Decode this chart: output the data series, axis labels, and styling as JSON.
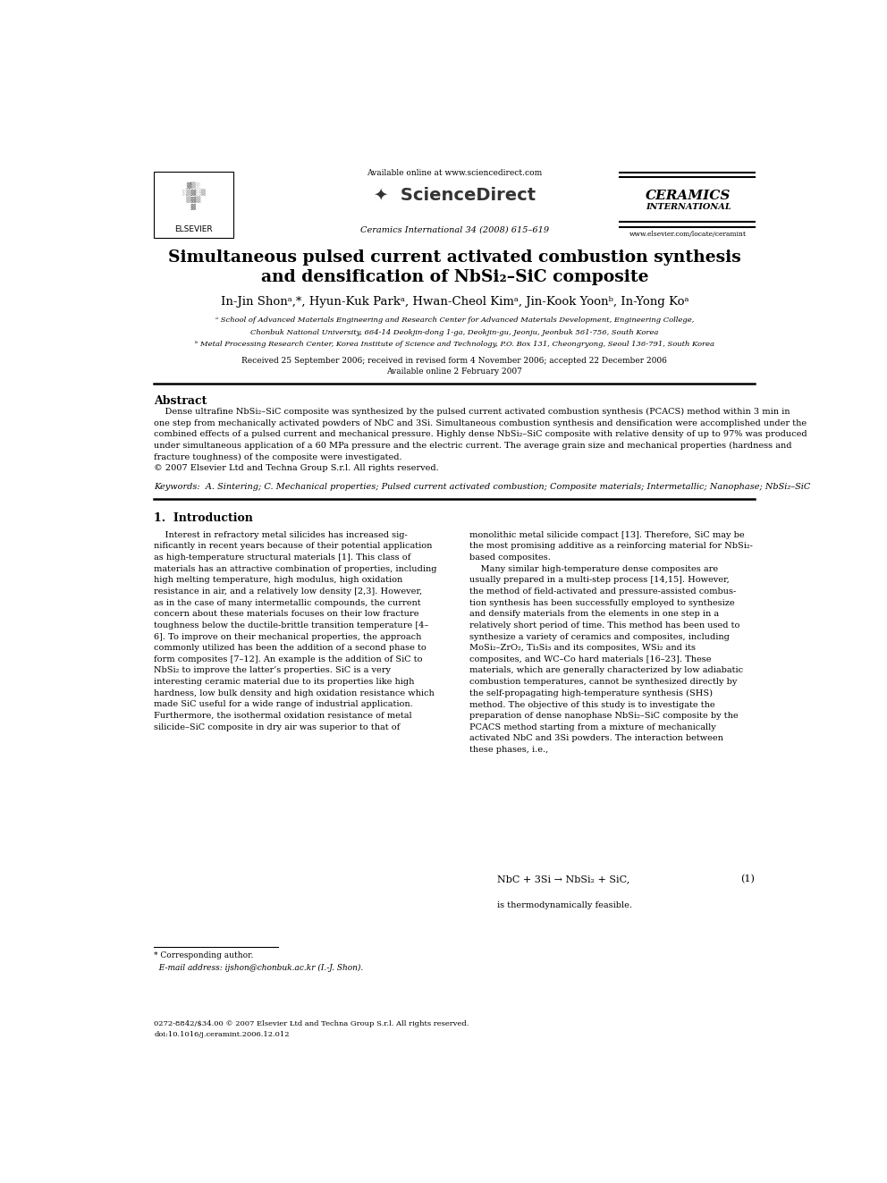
{
  "page_width": 9.92,
  "page_height": 13.23,
  "bg_color": "#ffffff",
  "header_available": "Available online at www.sciencedirect.com",
  "header_journal_info": "Ceramics International 34 (2008) 615–619",
  "header_ceramics1": "CERAMICS",
  "header_ceramics2": "INTERNATIONAL",
  "header_url": "www.elsevier.com/locate/ceramint",
  "elsevier_label": "ELSEVIER",
  "sciencedirect": "✦  ScienceDirect",
  "title_line1": "Simultaneous pulsed current activated combustion synthesis",
  "title_line2": "and densification of NbSi₂–SiC composite",
  "authors_line": "In-Jin Shonᵃ,*, Hyun-Kuk Parkᵃ, Hwan-Cheol Kimᵃ, Jin-Kook Yoonᵇ, In-Yong Koᵃ",
  "affil_a1": "ᵃ School of Advanced Materials Engineering and Research Center for Advanced Materials Development, Engineering College,",
  "affil_a2": "Chonbuk National University, 664-14 Deokjin-dong 1-ga, Deokjin-gu, Jeonju, Jeonbuk 561-756, South Korea",
  "affil_b": "ᵇ Metal Processing Research Center, Korea Institute of Science and Technology, P.O. Box 131, Cheongryong, Seoul 136-791, South Korea",
  "received": "Received 25 September 2006; received in revised form 4 November 2006; accepted 22 December 2006",
  "available_online": "Available online 2 February 2007",
  "abstract_head": "Abstract",
  "abstract_body": "    Dense ultrafine NbSi₂–SiC composite was synthesized by the pulsed current activated combustion synthesis (PCACS) method within 3 min in\none step from mechanically activated powders of NbC and 3Si. Simultaneous combustion synthesis and densification were accomplished under the\ncombined effects of a pulsed current and mechanical pressure. Highly dense NbSi₂–SiC composite with relative density of up to 97% was produced\nunder simultaneous application of a 60 MPa pressure and the electric current. The average grain size and mechanical properties (hardness and\nfracture toughness) of the composite were investigated.\n© 2007 Elsevier Ltd and Techna Group S.r.l. All rights reserved.",
  "keywords": "Keywords:  A. Sintering; C. Mechanical properties; Pulsed current activated combustion; Composite materials; Intermetallic; Nanophase; NbSi₂–SiC",
  "intro_head": "1.  Introduction",
  "col1_para1": "    Interest in refractory metal silicides has increased sig-\nnificantly in recent years because of their potential application\nas high-temperature structural materials [1]. This class of\nmaterials has an attractive combination of properties, including\nhigh melting temperature, high modulus, high oxidation\nresistance in air, and a relatively low density [2,3]. However,\nas in the case of many intermetallic compounds, the current\nconcern about these materials focuses on their low fracture\ntoughness below the ductile-brittle transition temperature [4–\n6]. To improve on their mechanical properties, the approach\ncommonly utilized has been the addition of a second phase to\nform composites [7–12]. An example is the addition of SiC to\nNbSi₂ to improve the latter’s properties. SiC is a very\ninteresting ceramic material due to its properties like high\nhardness, low bulk density and high oxidation resistance which\nmade SiC useful for a wide range of industrial application.\nFurthermore, the isothermal oxidation resistance of metal\nsilicide–SiC composite in dry air was superior to that of",
  "col2_para1": "monolithic metal silicide compact [13]. Therefore, SiC may be\nthe most promising additive as a reinforcing material for NbSi₂-\nbased composites.\n    Many similar high-temperature dense composites are\nusually prepared in a multi-step process [14,15]. However,\nthe method of field-activated and pressure-assisted combus-\ntion synthesis has been successfully employed to synthesize\nand densify materials from the elements in one step in a\nrelatively short period of time. This method has been used to\nsynthesize a variety of ceramics and composites, including\nMoSi₂–ZrO₂, Ti₃Si₃ and its composites, WSi₂ and its\ncomposites, and WC–Co hard materials [16–23]. These\nmaterials, which are generally characterized by low adiabatic\ncombustion temperatures, cannot be synthesized directly by\nthe self-propagating high-temperature synthesis (SHS)\nmethod. The objective of this study is to investigate the\npreparation of dense nanophase NbSi₂–SiC composite by the\nPCACS method starting from a mixture of mechanically\nactivated NbC and 3Si powders. The interaction between\nthese phases, i.e.,",
  "equation": "NbC + 3Si → NbSi₂ + SiC,",
  "eq_number": "(1)",
  "eq_note": "is thermodynamically feasible.",
  "footnote_sep_line": true,
  "footnote1": "* Corresponding author.",
  "footnote2": "  E-mail address: ijshon@chonbuk.ac.kr (I.-J. Shon).",
  "footer1": "0272-8842/$34.00 © 2007 Elsevier Ltd and Techna Group S.r.l. All rights reserved.",
  "footer2": "doi:10.1016/j.ceramint.2006.12.012",
  "lm": 0.063,
  "rm": 0.937,
  "col1_r": 0.478,
  "col2_l": 0.522
}
